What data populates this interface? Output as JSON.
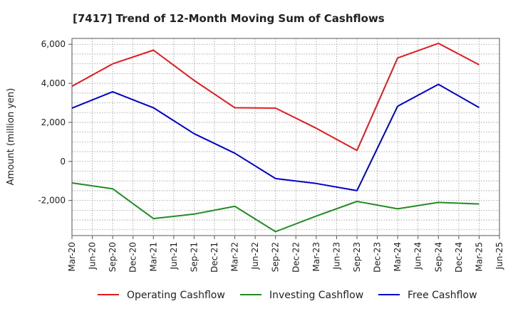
{
  "chart_data": {
    "type": "line",
    "title": "[7417]  Trend of 12-Month Moving Sum of Cashflows",
    "xlabel": "",
    "ylabel": "Amount (million yen)",
    "x": [
      "Mar-20",
      "Jun-20",
      "Sep-20",
      "Dec-20",
      "Mar-21",
      "Jun-21",
      "Sep-21",
      "Dec-21",
      "Mar-22",
      "Jun-22",
      "Sep-22",
      "Dec-22",
      "Mar-23",
      "Jun-23",
      "Sep-23",
      "Dec-23",
      "Mar-24",
      "Jun-24",
      "Sep-24",
      "Dec-24",
      "Mar-25",
      "Jun-25"
    ],
    "yticks": [
      -2000,
      0,
      2000,
      4000,
      6000
    ],
    "ytick_labels": [
      "-2,000",
      "0",
      "2,000",
      "4,000",
      "6,000"
    ],
    "ylim": [
      -3800,
      6300
    ],
    "grid": true,
    "legend_position": "bottom",
    "series": [
      {
        "name": "Operating Cashflow",
        "color": "#e41a1c",
        "points": [
          {
            "x": "Mar-20",
            "y": 3850
          },
          {
            "x": "Sep-20",
            "y": 5000
          },
          {
            "x": "Mar-21",
            "y": 5700
          },
          {
            "x": "Sep-21",
            "y": 4150
          },
          {
            "x": "Mar-22",
            "y": 2750
          },
          {
            "x": "Sep-22",
            "y": 2730
          },
          {
            "x": "Mar-23",
            "y": 1700
          },
          {
            "x": "Sep-23",
            "y": 560
          },
          {
            "x": "Mar-24",
            "y": 5300
          },
          {
            "x": "Sep-24",
            "y": 6050
          },
          {
            "x": "Mar-25",
            "y": 4950
          }
        ]
      },
      {
        "name": "Investing Cashflow",
        "color": "#228b22",
        "points": [
          {
            "x": "Mar-20",
            "y": -1100
          },
          {
            "x": "Sep-20",
            "y": -1400
          },
          {
            "x": "Mar-21",
            "y": -2930
          },
          {
            "x": "Sep-21",
            "y": -2700
          },
          {
            "x": "Mar-22",
            "y": -2300
          },
          {
            "x": "Sep-22",
            "y": -3600
          },
          {
            "x": "Mar-23",
            "y": -2800
          },
          {
            "x": "Sep-23",
            "y": -2050
          },
          {
            "x": "Mar-24",
            "y": -2430
          },
          {
            "x": "Sep-24",
            "y": -2100
          },
          {
            "x": "Mar-25",
            "y": -2180
          }
        ]
      },
      {
        "name": "Free Cashflow",
        "color": "#0000cd",
        "points": [
          {
            "x": "Mar-20",
            "y": 2730
          },
          {
            "x": "Sep-20",
            "y": 3570
          },
          {
            "x": "Mar-21",
            "y": 2750
          },
          {
            "x": "Sep-21",
            "y": 1420
          },
          {
            "x": "Mar-22",
            "y": 420
          },
          {
            "x": "Sep-22",
            "y": -880
          },
          {
            "x": "Mar-23",
            "y": -1130
          },
          {
            "x": "Sep-23",
            "y": -1500
          },
          {
            "x": "Mar-24",
            "y": 2830
          },
          {
            "x": "Sep-24",
            "y": 3950
          },
          {
            "x": "Mar-25",
            "y": 2760
          }
        ]
      }
    ]
  }
}
